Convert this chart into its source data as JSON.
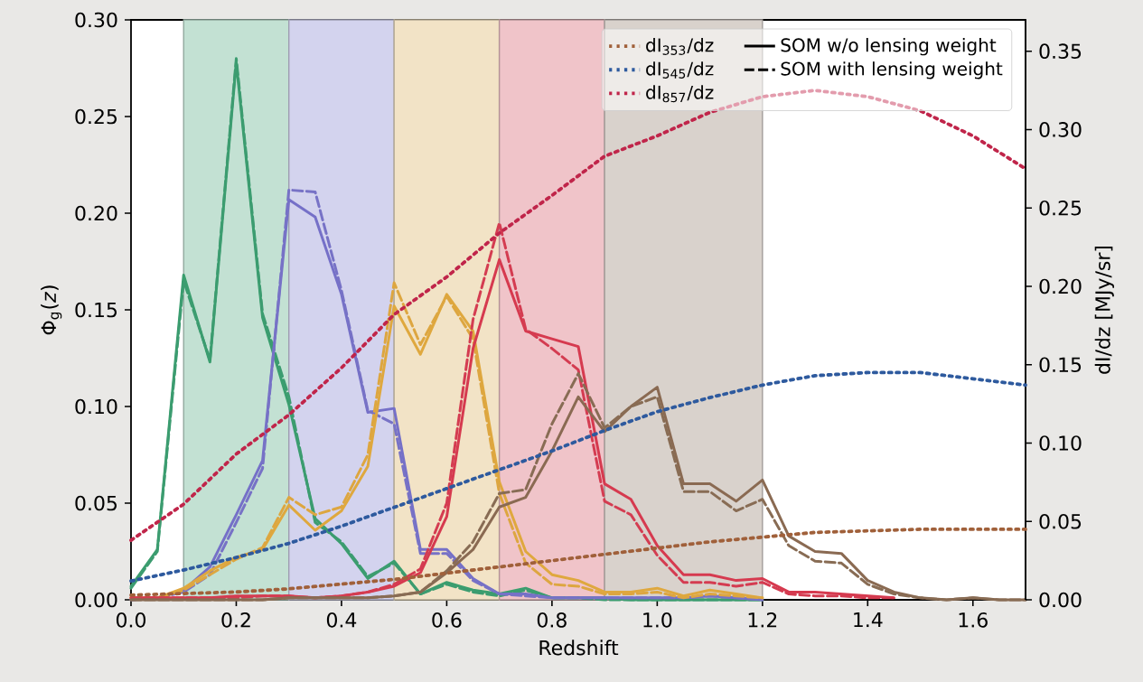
{
  "chart_data": {
    "type": "line",
    "xlabel": "Redshift",
    "ylabel": "Φ$_{g}$(*z*)",
    "y2label": "dI/dz [MJy/sr]",
    "x": [
      0,
      0.05,
      0.1,
      0.15,
      0.2,
      0.25,
      0.3,
      0.35,
      0.4,
      0.45,
      0.5,
      0.55,
      0.6,
      0.65,
      0.7,
      0.75,
      0.8,
      0.85,
      0.9,
      0.95,
      1.0,
      1.05,
      1.1,
      1.15,
      1.2,
      1.25,
      1.3,
      1.35,
      1.4,
      1.45,
      1.5,
      1.55,
      1.6,
      1.65,
      1.7
    ],
    "bands": [
      {
        "axis": "x",
        "from": 0.1,
        "to": 0.3,
        "color": "#c3e1d3"
      },
      {
        "axis": "x",
        "from": 0.3,
        "to": 0.5,
        "color": "#d3d3ee"
      },
      {
        "axis": "x",
        "from": 0.5,
        "to": 0.7,
        "color": "#f2e3c6"
      },
      {
        "axis": "x",
        "from": 0.7,
        "to": 0.9,
        "color": "#f0c4c9"
      },
      {
        "axis": "x",
        "from": 0.9,
        "to": 1.2,
        "color": "#d9d2cc"
      }
    ],
    "series": [
      {
        "name": "dI$_{353}$/dz",
        "color": "#a0603a",
        "line_style": "dotted",
        "axis": "y2",
        "x": [
          0,
          0.1,
          0.2,
          0.3,
          0.4,
          0.5,
          0.6,
          0.7,
          0.8,
          0.9,
          1.0,
          1.1,
          1.2,
          1.3,
          1.4,
          1.5,
          1.6,
          1.7
        ],
        "values": [
          0.003,
          0.004,
          0.005,
          0.007,
          0.01,
          0.013,
          0.017,
          0.021,
          0.025,
          0.029,
          0.033,
          0.037,
          0.04,
          0.043,
          0.044,
          0.045,
          0.045,
          0.045
        ]
      },
      {
        "name": "dI$_{545}$/dz",
        "color": "#2e5a9e",
        "line_style": "dotted",
        "axis": "y2",
        "x": [
          0,
          0.1,
          0.2,
          0.3,
          0.4,
          0.5,
          0.6,
          0.7,
          0.8,
          0.9,
          1.0,
          1.1,
          1.2,
          1.3,
          1.4,
          1.5,
          1.6,
          1.7
        ],
        "values": [
          0.012,
          0.019,
          0.027,
          0.036,
          0.047,
          0.059,
          0.071,
          0.083,
          0.095,
          0.108,
          0.12,
          0.129,
          0.137,
          0.143,
          0.145,
          0.145,
          0.141,
          0.137
        ]
      },
      {
        "name": "dI$_{857}$/dz",
        "color": "#c0254a",
        "line_style": "dotted",
        "axis": "y2",
        "x": [
          0,
          0.1,
          0.2,
          0.3,
          0.4,
          0.5,
          0.6,
          0.7,
          0.8,
          0.9,
          1.0,
          1.1,
          1.2,
          1.3,
          1.4,
          1.5,
          1.6,
          1.7
        ],
        "values": [
          0.038,
          0.061,
          0.093,
          0.118,
          0.148,
          0.182,
          0.206,
          0.234,
          0.258,
          0.283,
          0.296,
          0.311,
          0.321,
          0.325,
          0.321,
          0.312,
          0.296,
          0.275
        ]
      },
      {
        "color": "#3a9e6e",
        "line_style": "solid",
        "values": [
          0.007,
          0.026,
          0.168,
          0.123,
          0.278,
          0.146,
          0.101,
          0.042,
          0.029,
          0.011,
          0.02,
          0.003,
          0.009,
          0.005,
          0.003,
          0.006,
          0.001,
          0.001,
          0.001,
          0,
          0,
          0,
          0,
          0,
          0,
          null,
          null,
          null,
          null,
          null,
          null,
          null,
          null,
          null,
          null
        ]
      },
      {
        "color": "#3c9c70",
        "line_style": "dashed",
        "values": [
          0.006,
          0.025,
          0.165,
          0.124,
          0.28,
          0.148,
          0.105,
          0.04,
          0.03,
          0.012,
          0.019,
          0.003,
          0.008,
          0.004,
          0.002,
          0.005,
          0.001,
          0.001,
          0,
          0,
          0,
          0,
          0,
          0,
          0,
          null,
          null,
          null,
          null,
          null,
          null,
          null,
          null,
          null,
          null
        ]
      },
      {
        "color": "#7570c8",
        "line_style": "solid",
        "values": [
          0,
          0.001,
          0.005,
          0.017,
          0.044,
          0.072,
          0.207,
          0.198,
          0.158,
          0.097,
          0.099,
          0.026,
          0.026,
          0.011,
          0.003,
          0.003,
          0.001,
          0.001,
          0.001,
          0.001,
          0.001,
          0.001,
          0.002,
          0.001,
          0,
          null,
          null,
          null,
          null,
          null,
          null,
          null,
          null,
          null,
          null
        ]
      },
      {
        "color": "#7772c6",
        "line_style": "dashed",
        "values": [
          0,
          0.001,
          0.004,
          0.013,
          0.04,
          0.068,
          0.212,
          0.211,
          0.16,
          0.098,
          0.091,
          0.024,
          0.024,
          0.01,
          0.003,
          0.002,
          0.001,
          0.001,
          0.001,
          0.001,
          0.001,
          0.001,
          0.002,
          0.001,
          0,
          null,
          null,
          null,
          null,
          null,
          null,
          null,
          null,
          null,
          null
        ]
      },
      {
        "color": "#dfa83e",
        "line_style": "solid",
        "values": [
          0.001,
          0.001,
          0.006,
          0.015,
          0.022,
          0.026,
          0.049,
          0.036,
          0.046,
          0.069,
          0.152,
          0.127,
          0.158,
          0.139,
          0.061,
          0.025,
          0.013,
          0.01,
          0.004,
          0.004,
          0.006,
          0.002,
          0.005,
          0.003,
          0.001,
          null,
          null,
          null,
          null,
          null,
          null,
          null,
          null,
          null,
          null
        ]
      },
      {
        "color": "#dda640",
        "line_style": "dashed",
        "values": [
          0.001,
          0.001,
          0.005,
          0.013,
          0.021,
          0.027,
          0.053,
          0.044,
          0.048,
          0.075,
          0.164,
          0.132,
          0.157,
          0.135,
          0.055,
          0.019,
          0.008,
          0.007,
          0.003,
          0.003,
          0.004,
          0.001,
          0.003,
          0.002,
          0.001,
          null,
          null,
          null,
          null,
          null,
          null,
          null,
          null,
          null,
          null
        ]
      },
      {
        "color": "#d63a4f",
        "line_style": "solid",
        "values": [
          0.001,
          0.001,
          0.001,
          0.001,
          0.002,
          0.002,
          0.002,
          0.001,
          0.002,
          0.004,
          0.007,
          0.014,
          0.043,
          0.13,
          0.176,
          0.139,
          0.135,
          0.131,
          0.06,
          0.052,
          0.028,
          0.013,
          0.013,
          0.01,
          0.011,
          0.004,
          0.004,
          0.003,
          0.002,
          0.001,
          null,
          null,
          null,
          null,
          null
        ]
      },
      {
        "color": "#d43c51",
        "line_style": "dashed",
        "values": [
          0.001,
          0.001,
          0.001,
          0.001,
          0.001,
          0.002,
          0.002,
          0.001,
          0.002,
          0.004,
          0.008,
          0.016,
          0.05,
          0.145,
          0.195,
          0.14,
          0.13,
          0.119,
          0.051,
          0.044,
          0.023,
          0.009,
          0.009,
          0.007,
          0.009,
          0.003,
          0.002,
          0.002,
          0.001,
          0.001,
          null,
          null,
          null,
          null,
          null
        ]
      },
      {
        "color": "#8a6a52",
        "line_style": "solid",
        "values": [
          0,
          0,
          0,
          0,
          0,
          0,
          0.001,
          0.001,
          0.001,
          0.001,
          0.002,
          0.004,
          0.014,
          0.026,
          0.048,
          0.053,
          0.077,
          0.105,
          0.087,
          0.1,
          0.11,
          0.06,
          0.06,
          0.051,
          0.062,
          0.033,
          0.025,
          0.024,
          0.01,
          0.004,
          0.001,
          0,
          0.001,
          0,
          0
        ]
      },
      {
        "color": "#886c54",
        "line_style": "dashed",
        "values": [
          0,
          0,
          0,
          0,
          0,
          0,
          0.001,
          0.001,
          0.001,
          0.001,
          0.002,
          0.004,
          0.015,
          0.03,
          0.055,
          0.057,
          0.091,
          0.117,
          0.089,
          0.1,
          0.105,
          0.056,
          0.056,
          0.046,
          0.052,
          0.028,
          0.02,
          0.019,
          0.008,
          0.003,
          0.001,
          0,
          0.001,
          0,
          0
        ]
      }
    ],
    "annotations": [
      "SOM w/o lensing weight",
      "SOM with lensing weight"
    ],
    "legend": "top right",
    "xlim": [
      0,
      1.7
    ],
    "ylim": [
      0,
      0.3
    ],
    "y2lim": [
      0,
      0.37
    ],
    "xticks": [
      {
        "value": 0,
        "label": "0.0"
      },
      {
        "value": 0.2,
        "label": "0.2"
      },
      {
        "value": 0.4,
        "label": "0.4"
      },
      {
        "value": 0.6,
        "label": "0.6"
      },
      {
        "value": 0.8,
        "label": "0.8"
      },
      {
        "value": 1.0,
        "label": "1.0"
      },
      {
        "value": 1.2,
        "label": "1.2"
      },
      {
        "value": 1.4,
        "label": "1.4"
      },
      {
        "value": 1.6,
        "label": "1.6"
      }
    ],
    "yticks": [
      {
        "value": 0,
        "label": "0.00"
      },
      {
        "value": 0.05,
        "label": "0.05"
      },
      {
        "value": 0.1,
        "label": "0.10"
      },
      {
        "value": 0.15,
        "label": "0.15"
      },
      {
        "value": 0.2,
        "label": "0.20"
      },
      {
        "value": 0.25,
        "label": "0.25"
      },
      {
        "value": 0.3,
        "label": "0.30"
      }
    ],
    "y2ticks": [
      {
        "value": 0,
        "label": "0.00"
      },
      {
        "value": 0.05,
        "label": "0.05"
      },
      {
        "value": 0.1,
        "label": "0.10"
      },
      {
        "value": 0.15,
        "label": "0.15"
      },
      {
        "value": 0.2,
        "label": "0.20"
      },
      {
        "value": 0.25,
        "label": "0.25"
      },
      {
        "value": 0.3,
        "label": "0.30"
      },
      {
        "value": 0.35,
        "label": "0.35"
      }
    ]
  }
}
